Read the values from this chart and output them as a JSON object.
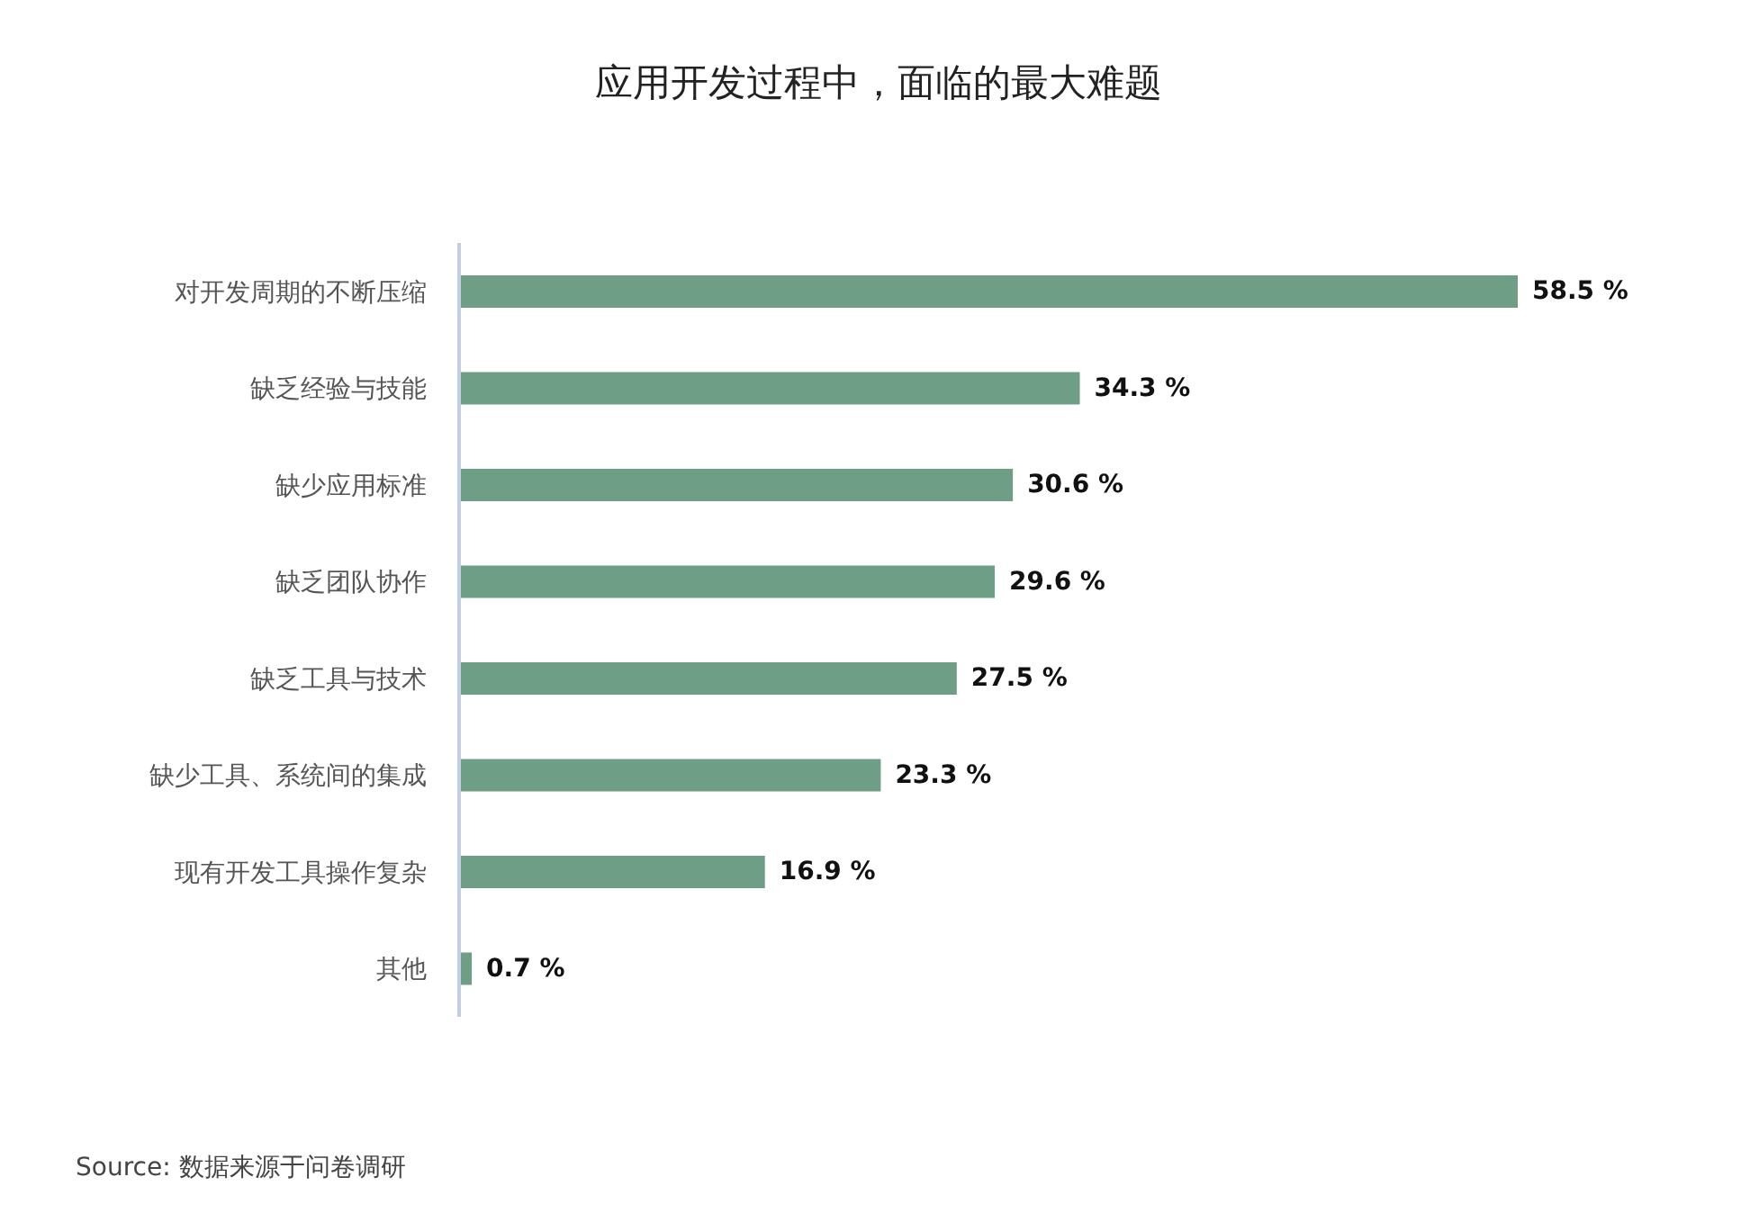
{
  "chart_data": {
    "type": "bar",
    "orientation": "horizontal",
    "title": "应用开发过程中，面临的最大难题",
    "categories": [
      "对开发周期的不断压缩",
      "缺乏经验与技能",
      "缺少应用标准",
      "缺乏团队协作",
      "缺乏工具与技术",
      "缺少工具、系统间的集成",
      "现有开发工具操作复杂",
      "其他"
    ],
    "values": [
      58.5,
      34.3,
      30.6,
      29.6,
      27.5,
      23.3,
      16.9,
      0.7
    ],
    "value_labels": [
      "58.5 %",
      "34.3 %",
      "30.6 %",
      "29.6 %",
      "27.5 %",
      "23.3 %",
      "16.9 %",
      "0.7 %"
    ],
    "color": "#6f9e87",
    "annotations": [
      "Source: 数据来源于问卷调研"
    ]
  }
}
